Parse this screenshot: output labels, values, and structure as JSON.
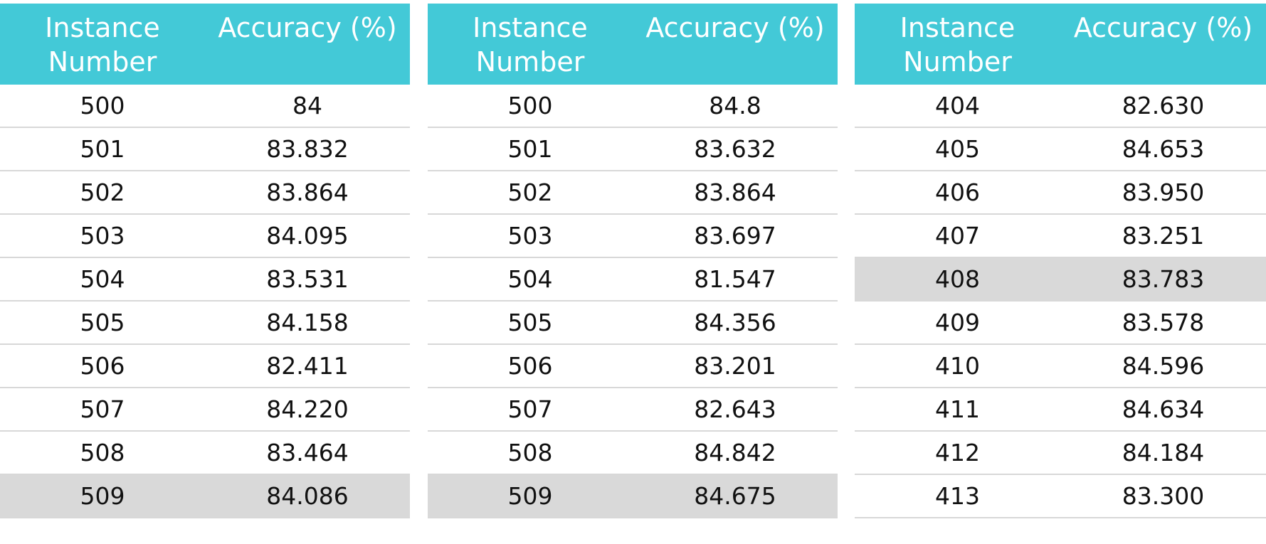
{
  "tables": [
    {
      "headers": [
        "Instance\nNumber",
        "Accuracy (%)"
      ],
      "rows": [
        {
          "instance": "500",
          "accuracy": "84",
          "highlight": false
        },
        {
          "instance": "501",
          "accuracy": "83.832",
          "highlight": false
        },
        {
          "instance": "502",
          "accuracy": "83.864",
          "highlight": false
        },
        {
          "instance": "503",
          "accuracy": "84.095",
          "highlight": false
        },
        {
          "instance": "504",
          "accuracy": "83.531",
          "highlight": false
        },
        {
          "instance": "505",
          "accuracy": "84.158",
          "highlight": false
        },
        {
          "instance": "506",
          "accuracy": "82.411",
          "highlight": false
        },
        {
          "instance": "507",
          "accuracy": "84.220",
          "highlight": false
        },
        {
          "instance": "508",
          "accuracy": "83.464",
          "highlight": false
        },
        {
          "instance": "509",
          "accuracy": "84.086",
          "highlight": true
        }
      ]
    },
    {
      "headers": [
        "Instance\nNumber",
        "Accuracy (%)"
      ],
      "rows": [
        {
          "instance": "500",
          "accuracy": "84.8",
          "highlight": false
        },
        {
          "instance": "501",
          "accuracy": "83.632",
          "highlight": false
        },
        {
          "instance": "502",
          "accuracy": "83.864",
          "highlight": false
        },
        {
          "instance": "503",
          "accuracy": "83.697",
          "highlight": false
        },
        {
          "instance": "504",
          "accuracy": "81.547",
          "highlight": false
        },
        {
          "instance": "505",
          "accuracy": "84.356",
          "highlight": false
        },
        {
          "instance": "506",
          "accuracy": "83.201",
          "highlight": false
        },
        {
          "instance": "507",
          "accuracy": "82.643",
          "highlight": false
        },
        {
          "instance": "508",
          "accuracy": "84.842",
          "highlight": false
        },
        {
          "instance": "509",
          "accuracy": "84.675",
          "highlight": true
        }
      ]
    },
    {
      "headers": [
        "Instance\nNumber",
        "Accuracy (%)"
      ],
      "rows": [
        {
          "instance": "404",
          "accuracy": "82.630",
          "highlight": false
        },
        {
          "instance": "405",
          "accuracy": "84.653",
          "highlight": false
        },
        {
          "instance": "406",
          "accuracy": "83.950",
          "highlight": false
        },
        {
          "instance": "407",
          "accuracy": "83.251",
          "highlight": false
        },
        {
          "instance": "408",
          "accuracy": "83.783",
          "highlight": true
        },
        {
          "instance": "409",
          "accuracy": "83.578",
          "highlight": false
        },
        {
          "instance": "410",
          "accuracy": "84.596",
          "highlight": false
        },
        {
          "instance": "411",
          "accuracy": "84.634",
          "highlight": false
        },
        {
          "instance": "412",
          "accuracy": "84.184",
          "highlight": false
        },
        {
          "instance": "413",
          "accuracy": "83.300",
          "highlight": false
        }
      ]
    }
  ],
  "colors": {
    "header_bg": "#43c9d7",
    "header_text": "#ffffff",
    "highlight_bg": "#d9d9d9",
    "divider": "#d8d8d8"
  }
}
